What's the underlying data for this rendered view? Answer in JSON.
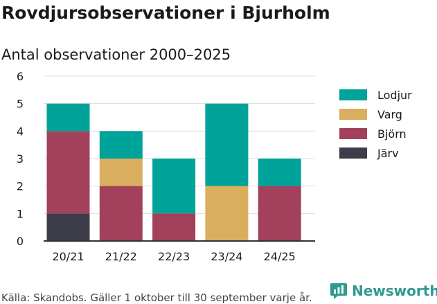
{
  "title": "Rovdjursobservationer i Bjurholm",
  "subtitle": "Antal observationer 2000–2025",
  "source": "Källa: Skandobs. Gäller 1 oktober till 30 september varje år.",
  "brand": {
    "name": "Newsworthy",
    "logo_icon": "newsworthy-logo-icon",
    "color": "#2e9b8f"
  },
  "chart_data": {
    "type": "bar",
    "stacked": true,
    "categories": [
      "20/21",
      "21/22",
      "22/23",
      "23/24",
      "24/25"
    ],
    "series": [
      {
        "name": "Järv",
        "color": "#3d3d4a",
        "values": [
          1,
          0,
          0,
          0,
          0
        ]
      },
      {
        "name": "Björn",
        "color": "#a3405c",
        "values": [
          3,
          2,
          1,
          0,
          2
        ]
      },
      {
        "name": "Varg",
        "color": "#d9ae5e",
        "values": [
          0,
          1,
          0,
          2,
          0
        ]
      },
      {
        "name": "Lodjur",
        "color": "#00a39a",
        "values": [
          1,
          1,
          2,
          3,
          1
        ]
      }
    ],
    "legend_order": [
      "Lodjur",
      "Varg",
      "Björn",
      "Järv"
    ],
    "legend_position": "right",
    "ylim": [
      0,
      6
    ],
    "yticks": [
      "0",
      "1",
      "2",
      "3",
      "4",
      "5",
      "6"
    ],
    "grid": true
  }
}
